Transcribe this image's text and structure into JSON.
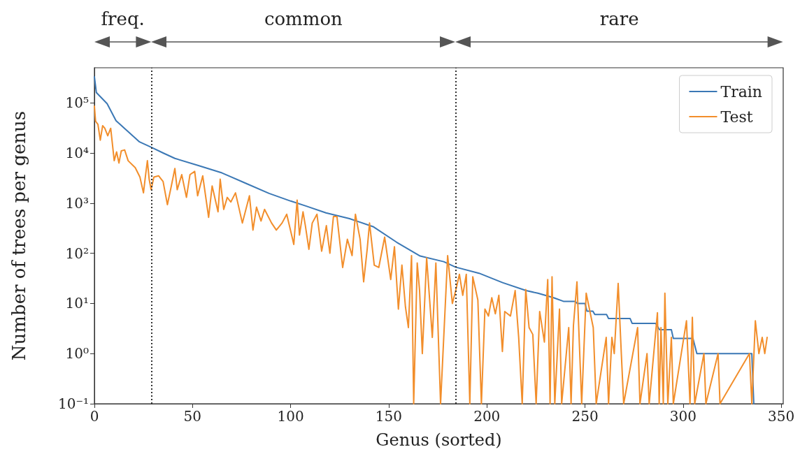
{
  "chart_data": {
    "type": "line",
    "xlabel": "Genus (sorted)",
    "ylabel": "Number of trees per genus",
    "xlim": [
      0,
      351
    ],
    "xticks": [
      0,
      50,
      100,
      150,
      200,
      250,
      300,
      350
    ],
    "ylim": [
      0.1,
      500000
    ],
    "log": "y",
    "yticks": [
      {
        "value": 0.1,
        "label": "10⁻¹"
      },
      {
        "value": 1,
        "label": "10⁰"
      },
      {
        "value": 10,
        "label": "10¹"
      },
      {
        "value": 100,
        "label": "10²"
      },
      {
        "value": 1000,
        "label": "10³"
      },
      {
        "value": 10000,
        "label": "10⁴"
      },
      {
        "value": 100000,
        "label": "10⁵"
      }
    ],
    "grid": false,
    "legend": "top right",
    "line_style": "solid",
    "marker": "none",
    "ref_lines": [
      {
        "axis": "x",
        "value": 29,
        "color": "#333333",
        "line_style": "dotted"
      },
      {
        "axis": "x",
        "value": 184,
        "color": "#333333",
        "line_style": "dotted"
      }
    ],
    "annotations": [
      "freq.",
      "common",
      "rare"
    ],
    "series": [
      {
        "name": "Train",
        "color": "#3b78b5",
        "x": [
          0,
          1,
          6.5,
          11,
          17,
          23,
          29,
          35,
          41,
          53,
          65,
          77,
          89,
          100,
          108,
          118,
          130,
          142,
          154,
          166,
          178,
          184,
          196,
          208,
          220,
          226,
          234,
          239,
          245,
          246,
          250,
          251,
          254,
          255,
          261,
          262,
          273,
          274,
          286,
          288,
          294,
          295,
          305,
          307,
          335,
          336
        ],
        "values": [
          330000,
          160000,
          96000,
          44000,
          27000,
          16600,
          13000,
          10000,
          7800,
          5600,
          4000,
          2500,
          1560,
          1100,
          870,
          640,
          490,
          340,
          166,
          88,
          68,
          53,
          40,
          26,
          18,
          16,
          13,
          11,
          11,
          10,
          10,
          7,
          7,
          6,
          6,
          5,
          5,
          4,
          4,
          3,
          3,
          2,
          2,
          1,
          1,
          0.1
        ]
      },
      {
        "name": "Test",
        "color": "#f28e2b",
        "x": [
          0,
          0.6,
          1.8,
          3,
          4.2,
          5.3,
          6.8,
          8.3,
          10.1,
          11.3,
          12.5,
          13.7,
          15.4,
          17.2,
          20.8,
          23.2,
          25,
          26.1,
          27,
          27.9,
          28.9,
          30.3,
          32.7,
          35,
          37.2,
          39.2,
          41,
          42.2,
          44.5,
          46.9,
          48.7,
          51.1,
          52.6,
          55.2,
          58.2,
          60,
          63,
          64.1,
          65.9,
          67.7,
          69.5,
          71.9,
          75.4,
          79,
          80.8,
          82.6,
          84.9,
          86.7,
          90.3,
          92.7,
          95.6,
          98,
          101,
          101.6,
          103.3,
          104.5,
          106.3,
          107.5,
          109.3,
          111,
          113.4,
          115.8,
          118.2,
          120,
          121.8,
          123.6,
          126.5,
          128.9,
          131.3,
          133,
          135.4,
          137.2,
          139,
          140.2,
          142.6,
          144.9,
          147.9,
          151,
          152.9,
          154.9,
          156.7,
          158.5,
          160,
          161.6,
          162.7,
          164.5,
          165.7,
          167.1,
          169.3,
          172.2,
          174,
          176.4,
          180,
          182.4,
          184.1,
          186,
          187.7,
          189.5,
          191.3,
          192.8,
          195.4,
          197.2,
          199,
          200.8,
          202.5,
          204.3,
          206.1,
          207.9,
          209.1,
          212,
          214.4,
          216.2,
          218,
          219.8,
          221.5,
          223.4,
          225.1,
          226.9,
          229.3,
          231,
          232.2,
          233.2,
          234.6,
          237,
          238.1,
          241.7,
          242.9,
          244.1,
          245.9,
          248.3,
          250.6,
          254.2,
          255.7,
          260.8,
          262,
          263.7,
          264.9,
          266.9,
          268.5,
          269.7,
          276.8,
          278,
          281.6,
          282.7,
          286.9,
          287.8,
          288.7,
          289.9,
          290.7,
          292.2,
          294,
          295,
          301.7,
          303.5,
          304.7,
          305.9,
          310.6,
          311.6,
          317.8,
          318.8,
          333.8,
          335,
          336.8,
          338.6,
          340.3,
          341.6,
          342.8
        ],
        "values": [
          86000,
          43000,
          37000,
          18000,
          35000,
          31000,
          22000,
          31000,
          7000,
          10500,
          6300,
          11000,
          11500,
          7000,
          5100,
          3300,
          1600,
          3700,
          7000,
          3000,
          1850,
          3300,
          3500,
          2700,
          930,
          2200,
          4900,
          1850,
          3700,
          1300,
          3700,
          4300,
          1400,
          3500,
          520,
          2200,
          670,
          3000,
          750,
          1300,
          1050,
          1600,
          400,
          1400,
          290,
          830,
          440,
          750,
          400,
          290,
          400,
          600,
          190,
          150,
          1150,
          230,
          670,
          355,
          120,
          400,
          600,
          110,
          355,
          100,
          540,
          540,
          52,
          190,
          90,
          600,
          190,
          27,
          120,
          400,
          58,
          52,
          210,
          30,
          135,
          7.7,
          58,
          8.5,
          3.3,
          90,
          0.1,
          64,
          18,
          1,
          81,
          2.1,
          64,
          0.1,
          90,
          10,
          18,
          38,
          14.5,
          38,
          0.1,
          34,
          11.7,
          0.1,
          7.7,
          5.6,
          13,
          6.2,
          14.5,
          1.1,
          6.9,
          5.6,
          18,
          2.1,
          0.1,
          19,
          3.3,
          2.4,
          0.1,
          6.9,
          1.7,
          30,
          0.1,
          34,
          0.1,
          7.7,
          0.1,
          3.3,
          0.1,
          3.6,
          27,
          0.1,
          16,
          3.3,
          0.1,
          2.1,
          0.1,
          2.1,
          1,
          25,
          1,
          0.1,
          3.3,
          0.1,
          1,
          0.1,
          6.5,
          0.1,
          3.3,
          0.1,
          16,
          0.1,
          2.1,
          0.1,
          4.5,
          0.1,
          5.3,
          0.1,
          1,
          0.1,
          1,
          0.1,
          1,
          0.1,
          4.5,
          1,
          2.1,
          1,
          2.1
        ]
      }
    ]
  }
}
